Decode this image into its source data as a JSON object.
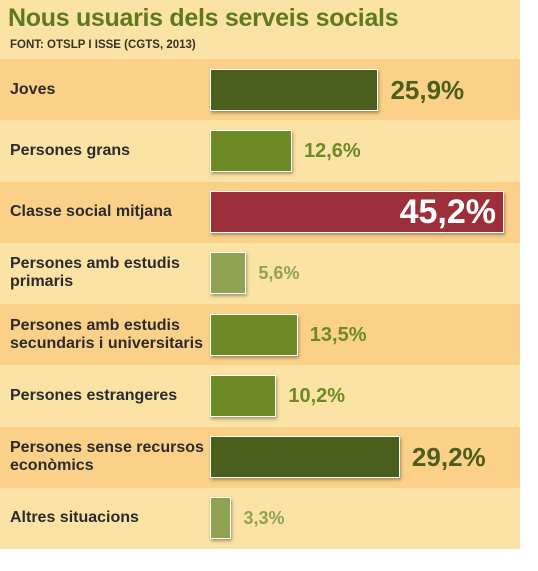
{
  "header": {
    "title": "Nous usuaris dels serveis socials",
    "source": "FONT: OTSLP I ISSE (CGTS, 2013)"
  },
  "colors": {
    "panel": "#fbe3a6",
    "stripe": "#fbd189",
    "dark_green": "#4b5f1c",
    "mid_green": "#6e8a25",
    "light_green": "#8fa352",
    "highlight": "#9c2f3a"
  },
  "chart_data": {
    "type": "bar",
    "orientation": "horizontal",
    "title": "Nous usuaris dels serveis socials",
    "subtitle": "FONT: OTSLP I ISSE (CGTS, 2013)",
    "unit": "%",
    "categories": [
      "Joves",
      "Persones grans",
      "Classe social mitjana",
      "Persones amb estudis primaris",
      "Persones amb estudis secundaris i universitaris",
      "Persones estrangeres",
      "Persones sense recursos econòmics",
      "Altres situacions"
    ],
    "values": [
      25.9,
      12.6,
      45.2,
      5.6,
      13.5,
      10.2,
      29.2,
      3.3
    ],
    "value_labels": [
      "25,9%",
      "12,6%",
      "45,2%",
      "5,6%",
      "13,5%",
      "10,2%",
      "29,2%",
      "3,3%"
    ],
    "bar_colors": [
      "#4b5f1c",
      "#6e8a25",
      "#9c2f3a",
      "#8fa352",
      "#6e8a25",
      "#6e8a25",
      "#4b5f1c",
      "#8fa352"
    ],
    "xlim": [
      0,
      45.2
    ]
  }
}
